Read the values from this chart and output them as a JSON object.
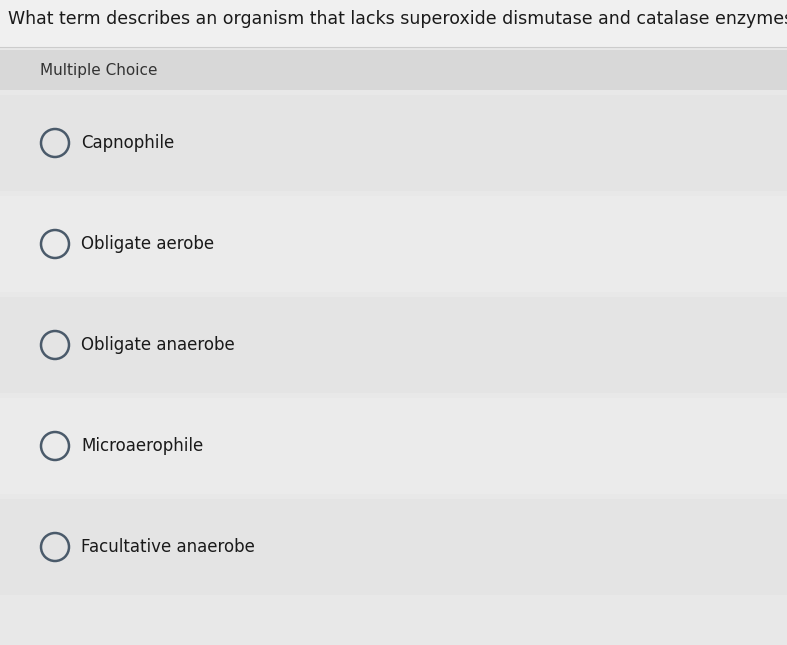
{
  "question": "What term describes an organism that lacks superoxide dismutase and catalase enzymes?",
  "section_label": "Multiple Choice",
  "choices": [
    "Capnophile",
    "Obligate aerobe",
    "Obligate anaerobe",
    "Microaerophile",
    "Facultative anaerobe"
  ],
  "overall_bg": "#e8e8e8",
  "question_area_bg": "#f0f0f0",
  "section_header_bg": "#d8d8d8",
  "choice_row_bg_1": "#e4e4e4",
  "choice_row_bg_2": "#ebebeb",
  "separator_color": "#cccccc",
  "circle_edge_color": "#4a5a6a",
  "text_color": "#1a1a1a",
  "section_text_color": "#333333",
  "question_fontsize": 12.5,
  "section_fontsize": 11,
  "choice_fontsize": 12,
  "fig_width": 7.87,
  "fig_height": 6.45
}
